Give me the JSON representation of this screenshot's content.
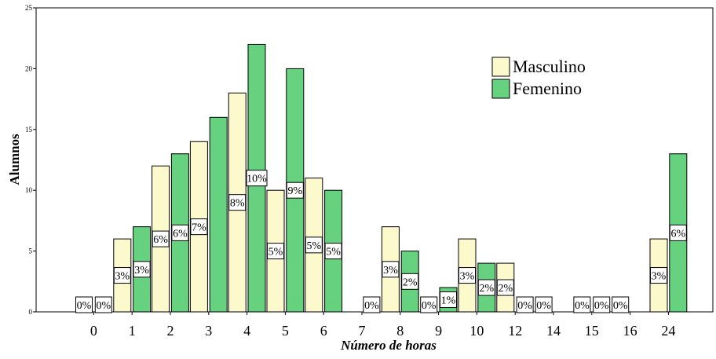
{
  "chart_data": {
    "type": "bar",
    "title": "",
    "xlabel": "Número de horas",
    "ylabel": "Alumnos",
    "ylim": [
      0,
      25
    ],
    "yticks": [
      0,
      5,
      10,
      15,
      20,
      25
    ],
    "grid": false,
    "legend_position": "top-right",
    "categories": [
      "0",
      "1",
      "2",
      "3",
      "4",
      "5",
      "6",
      "7",
      "8",
      "9",
      "10",
      "12",
      "14",
      "15",
      "16",
      "24"
    ],
    "series": [
      {
        "name": "Masculino",
        "color": "#fcf9cc",
        "values": [
          0,
          6,
          12,
          14,
          18,
          10,
          11,
          0,
          7,
          0,
          6,
          4,
          0,
          0,
          0,
          6
        ],
        "labels": [
          "0%",
          "3%",
          "6%",
          "7%",
          "8%",
          "5%",
          "5%",
          "",
          "3%",
          "0%",
          "3%",
          "2%",
          "0%",
          "0%",
          "0%",
          "3%"
        ]
      },
      {
        "name": "Femenino",
        "color": "#66d17e",
        "values": [
          0,
          7,
          13,
          16,
          22,
          20,
          10,
          0,
          5,
          2,
          4,
          0,
          0,
          0,
          0,
          13
        ],
        "labels": [
          "0%",
          "3%",
          "6%",
          "",
          "10%",
          "9%",
          "5%",
          "0%",
          "2%",
          "1%",
          "2%",
          "0%",
          "",
          "0%",
          "",
          "6%"
        ]
      }
    ]
  }
}
